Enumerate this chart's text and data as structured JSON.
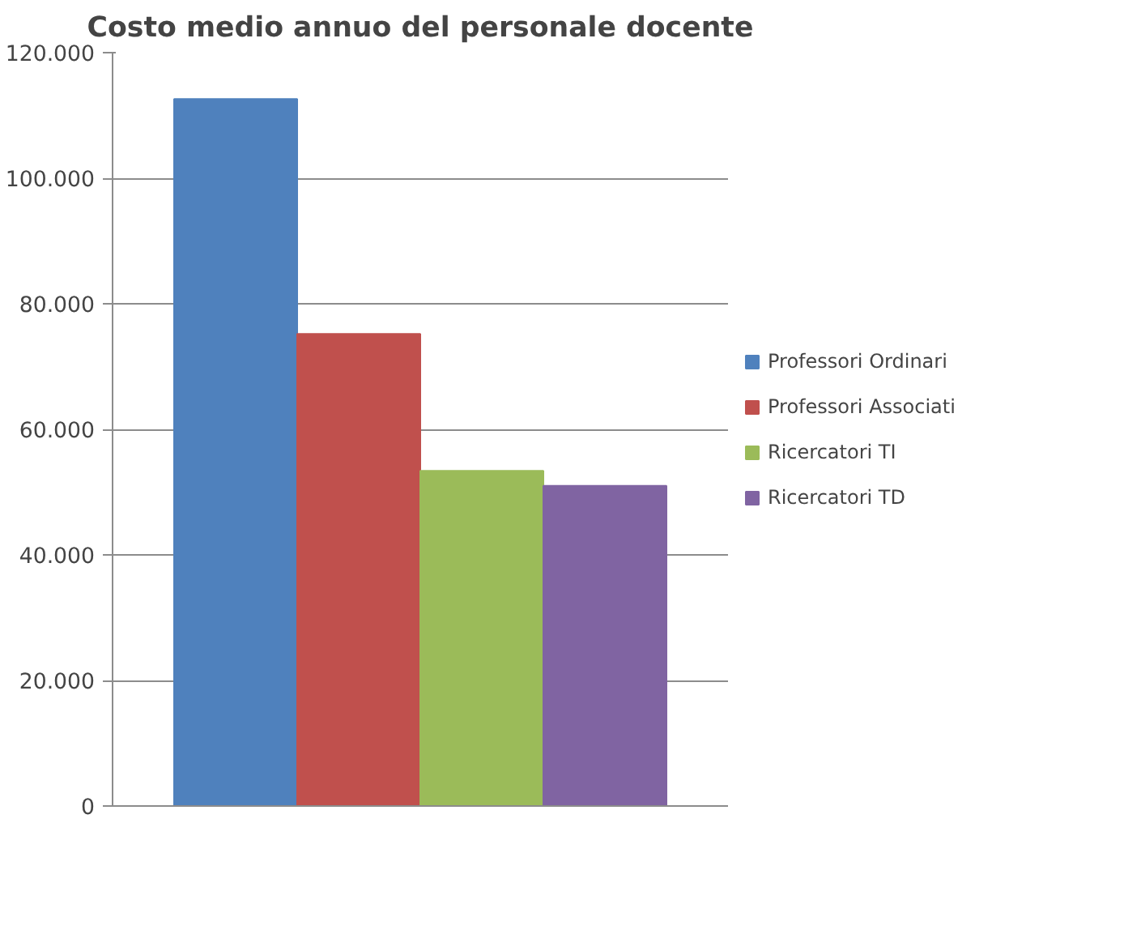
{
  "chart_data": {
    "type": "bar",
    "title": "Costo medio annuo del personale docente",
    "categories": [
      null
    ],
    "series": [
      {
        "name": "Professori Ordinari",
        "color": "#4f81bd",
        "values": [
          112600
        ]
      },
      {
        "name": "Professori Associati",
        "color": "#c0504d",
        "values": [
          75200
        ]
      },
      {
        "name": "Ricercatori TI",
        "color": "#9bbb59",
        "values": [
          53400
        ]
      },
      {
        "name": "Ricercatori TD",
        "color": "#8064a2",
        "values": [
          51000
        ]
      }
    ],
    "ylim": [
      0,
      120000
    ],
    "yticks": [
      0,
      {
        "value": 20000,
        "label": "20.000"
      },
      {
        "value": 40000,
        "label": "40.000"
      },
      {
        "value": 60000,
        "label": "60.000"
      },
      {
        "value": 80000,
        "label": "80.000"
      },
      {
        "value": 100000,
        "label": "100.000"
      },
      {
        "value": 120000,
        "label": "120.000"
      }
    ],
    "grid": "y",
    "legend": "right"
  }
}
